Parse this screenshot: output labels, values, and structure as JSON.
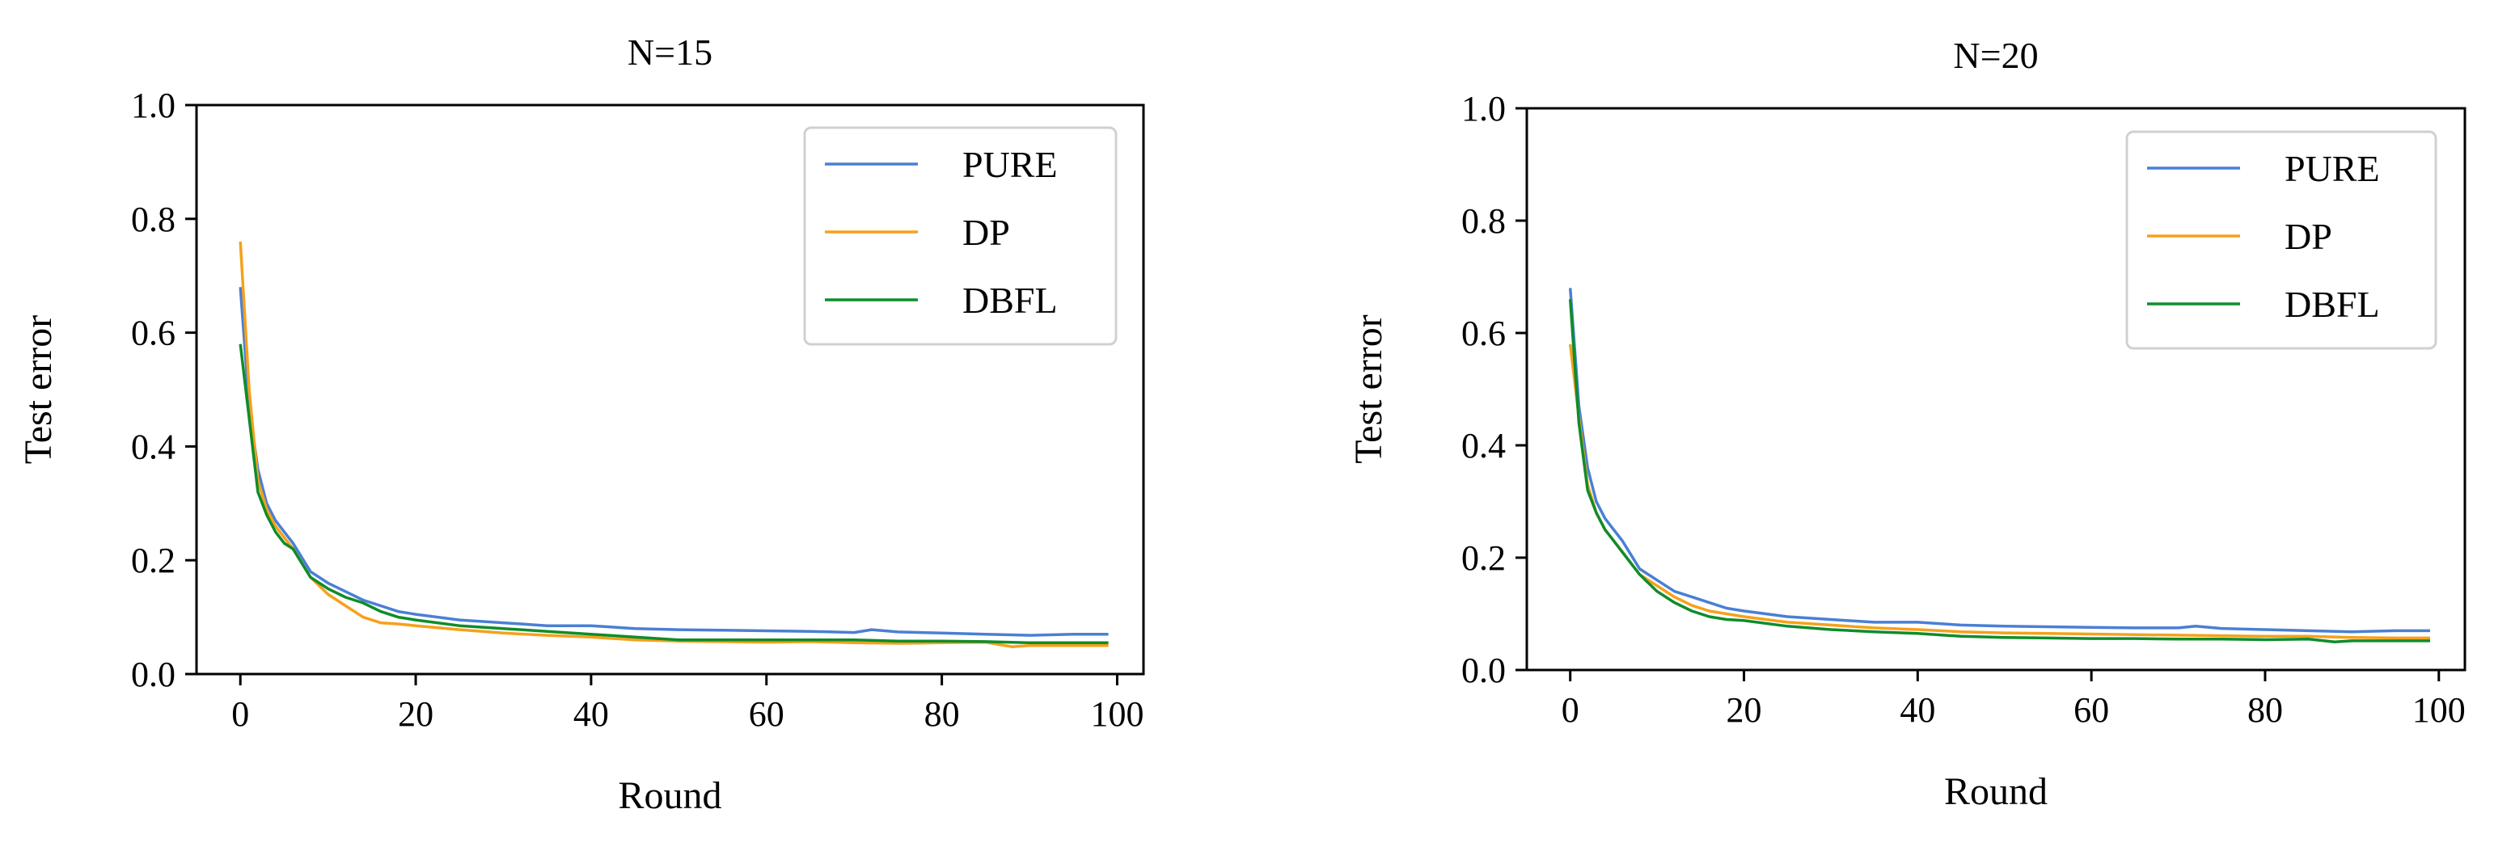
{
  "chart_data": [
    {
      "type": "line",
      "title": "N=15",
      "xlabel": "Round",
      "ylabel": "Test error",
      "xlim": [
        -5,
        103
      ],
      "ylim": [
        0.0,
        1.0
      ],
      "xticks": [
        0,
        20,
        40,
        60,
        80,
        100
      ],
      "xtick_labels": [
        "0",
        "20",
        "40",
        "60",
        "80",
        "100"
      ],
      "yticks": [
        0.0,
        0.2,
        0.4,
        0.6,
        0.8,
        1.0
      ],
      "ytick_labels": [
        "0.0",
        "0.2",
        "0.4",
        "0.6",
        "0.8",
        "1.0"
      ],
      "legend_position": "top-right",
      "series": [
        {
          "name": "PURE",
          "color": "#4a7fd4",
          "x": [
            0,
            1,
            2,
            3,
            4,
            5,
            6,
            8,
            10,
            12,
            14,
            16,
            18,
            20,
            25,
            30,
            35,
            40,
            45,
            50,
            55,
            60,
            65,
            70,
            72,
            75,
            80,
            85,
            90,
            95,
            99
          ],
          "y": [
            0.68,
            0.47,
            0.36,
            0.3,
            0.27,
            0.25,
            0.23,
            0.18,
            0.16,
            0.145,
            0.13,
            0.12,
            0.11,
            0.105,
            0.095,
            0.09,
            0.085,
            0.085,
            0.08,
            0.078,
            0.077,
            0.076,
            0.075,
            0.073,
            0.078,
            0.074,
            0.072,
            0.07,
            0.068,
            0.07,
            0.07
          ]
        },
        {
          "name": "DP",
          "color": "#f5a11b",
          "x": [
            0,
            1,
            2,
            3,
            4,
            5,
            6,
            8,
            10,
            12,
            14,
            16,
            18,
            20,
            25,
            30,
            35,
            40,
            45,
            50,
            55,
            60,
            65,
            70,
            75,
            80,
            85,
            88,
            90,
            95,
            99
          ],
          "y": [
            0.76,
            0.5,
            0.34,
            0.29,
            0.26,
            0.24,
            0.22,
            0.17,
            0.14,
            0.12,
            0.1,
            0.09,
            0.088,
            0.085,
            0.078,
            0.072,
            0.068,
            0.065,
            0.06,
            0.058,
            0.057,
            0.056,
            0.057,
            0.055,
            0.054,
            0.055,
            0.056,
            0.048,
            0.05,
            0.05,
            0.05
          ]
        },
        {
          "name": "DBFL",
          "color": "#0f8c2a",
          "x": [
            0,
            1,
            2,
            3,
            4,
            5,
            6,
            8,
            10,
            12,
            14,
            16,
            18,
            20,
            25,
            30,
            35,
            40,
            45,
            50,
            55,
            60,
            65,
            70,
            75,
            80,
            85,
            90,
            95,
            99
          ],
          "y": [
            0.58,
            0.45,
            0.32,
            0.28,
            0.25,
            0.23,
            0.22,
            0.17,
            0.15,
            0.135,
            0.125,
            0.11,
            0.1,
            0.095,
            0.085,
            0.08,
            0.075,
            0.07,
            0.065,
            0.06,
            0.06,
            0.06,
            0.06,
            0.06,
            0.058,
            0.058,
            0.057,
            0.055,
            0.055,
            0.055
          ]
        }
      ]
    },
    {
      "type": "line",
      "title": "N=20",
      "xlabel": "Round",
      "ylabel": "Test error",
      "xlim": [
        -5,
        103
      ],
      "ylim": [
        0.0,
        1.0
      ],
      "xticks": [
        0,
        20,
        40,
        60,
        80,
        100
      ],
      "xtick_labels": [
        "0",
        "20",
        "40",
        "60",
        "80",
        "100"
      ],
      "yticks": [
        0.0,
        0.2,
        0.4,
        0.6,
        0.8,
        1.0
      ],
      "ytick_labels": [
        "0.0",
        "0.2",
        "0.4",
        "0.6",
        "0.8",
        "1.0"
      ],
      "legend_position": "top-right",
      "series": [
        {
          "name": "PURE",
          "color": "#4a7fd4",
          "x": [
            0,
            1,
            2,
            3,
            4,
            5,
            6,
            8,
            10,
            12,
            14,
            16,
            18,
            20,
            25,
            30,
            35,
            40,
            45,
            50,
            55,
            60,
            65,
            70,
            72,
            75,
            80,
            85,
            90,
            95,
            99
          ],
          "y": [
            0.68,
            0.47,
            0.36,
            0.3,
            0.27,
            0.25,
            0.23,
            0.18,
            0.16,
            0.14,
            0.13,
            0.12,
            0.11,
            0.105,
            0.095,
            0.09,
            0.085,
            0.085,
            0.08,
            0.078,
            0.077,
            0.076,
            0.075,
            0.075,
            0.078,
            0.074,
            0.072,
            0.07,
            0.068,
            0.07,
            0.07
          ]
        },
        {
          "name": "DP",
          "color": "#f5a11b",
          "x": [
            0,
            1,
            2,
            3,
            4,
            5,
            6,
            8,
            10,
            12,
            14,
            16,
            18,
            20,
            25,
            30,
            35,
            40,
            45,
            50,
            55,
            60,
            65,
            70,
            75,
            80,
            85,
            90,
            95,
            99
          ],
          "y": [
            0.58,
            0.45,
            0.33,
            0.28,
            0.25,
            0.23,
            0.21,
            0.17,
            0.15,
            0.13,
            0.115,
            0.105,
            0.1,
            0.095,
            0.085,
            0.08,
            0.075,
            0.072,
            0.068,
            0.066,
            0.065,
            0.064,
            0.063,
            0.062,
            0.061,
            0.06,
            0.06,
            0.058,
            0.057,
            0.057
          ]
        },
        {
          "name": "DBFL",
          "color": "#0f8c2a",
          "x": [
            0,
            1,
            2,
            3,
            4,
            5,
            6,
            8,
            10,
            12,
            14,
            16,
            18,
            20,
            25,
            30,
            35,
            40,
            45,
            50,
            55,
            60,
            65,
            70,
            75,
            80,
            85,
            88,
            90,
            95,
            99
          ],
          "y": [
            0.66,
            0.44,
            0.32,
            0.28,
            0.25,
            0.23,
            0.21,
            0.17,
            0.14,
            0.12,
            0.105,
            0.095,
            0.09,
            0.088,
            0.078,
            0.072,
            0.068,
            0.065,
            0.06,
            0.058,
            0.057,
            0.056,
            0.056,
            0.055,
            0.055,
            0.054,
            0.055,
            0.05,
            0.052,
            0.052,
            0.052
          ]
        }
      ]
    }
  ]
}
